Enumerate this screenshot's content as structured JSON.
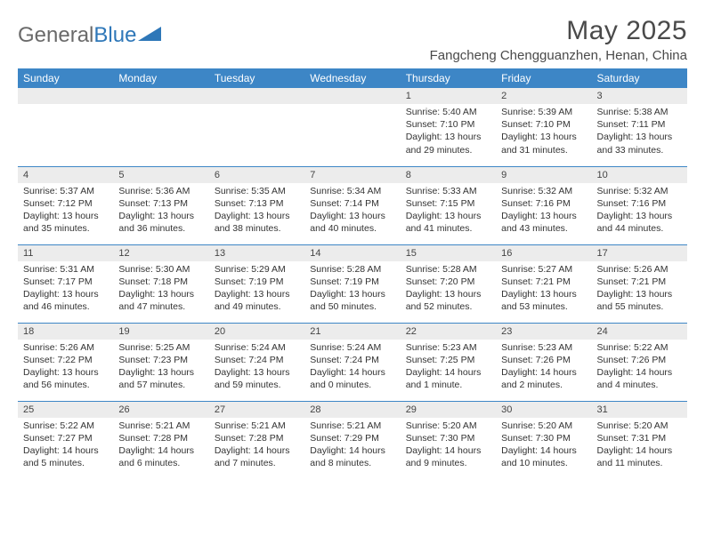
{
  "brand": {
    "part1": "General",
    "part2": "Blue"
  },
  "title": {
    "month": "May 2025",
    "location": "Fangcheng Chengguanzhen, Henan, China"
  },
  "colors": {
    "header_bg": "#3d86c6",
    "header_text": "#ffffff",
    "daynum_bg": "#ececec",
    "border": "#3d86c6",
    "logo_gray": "#6a6a6a",
    "logo_blue": "#2e77b8"
  },
  "weekdays": [
    "Sunday",
    "Monday",
    "Tuesday",
    "Wednesday",
    "Thursday",
    "Friday",
    "Saturday"
  ],
  "weeks": [
    [
      null,
      null,
      null,
      null,
      {
        "n": "1",
        "sr": "5:40 AM",
        "ss": "7:10 PM",
        "dl": "13 hours and 29 minutes."
      },
      {
        "n": "2",
        "sr": "5:39 AM",
        "ss": "7:10 PM",
        "dl": "13 hours and 31 minutes."
      },
      {
        "n": "3",
        "sr": "5:38 AM",
        "ss": "7:11 PM",
        "dl": "13 hours and 33 minutes."
      }
    ],
    [
      {
        "n": "4",
        "sr": "5:37 AM",
        "ss": "7:12 PM",
        "dl": "13 hours and 35 minutes."
      },
      {
        "n": "5",
        "sr": "5:36 AM",
        "ss": "7:13 PM",
        "dl": "13 hours and 36 minutes."
      },
      {
        "n": "6",
        "sr": "5:35 AM",
        "ss": "7:13 PM",
        "dl": "13 hours and 38 minutes."
      },
      {
        "n": "7",
        "sr": "5:34 AM",
        "ss": "7:14 PM",
        "dl": "13 hours and 40 minutes."
      },
      {
        "n": "8",
        "sr": "5:33 AM",
        "ss": "7:15 PM",
        "dl": "13 hours and 41 minutes."
      },
      {
        "n": "9",
        "sr": "5:32 AM",
        "ss": "7:16 PM",
        "dl": "13 hours and 43 minutes."
      },
      {
        "n": "10",
        "sr": "5:32 AM",
        "ss": "7:16 PM",
        "dl": "13 hours and 44 minutes."
      }
    ],
    [
      {
        "n": "11",
        "sr": "5:31 AM",
        "ss": "7:17 PM",
        "dl": "13 hours and 46 minutes."
      },
      {
        "n": "12",
        "sr": "5:30 AM",
        "ss": "7:18 PM",
        "dl": "13 hours and 47 minutes."
      },
      {
        "n": "13",
        "sr": "5:29 AM",
        "ss": "7:19 PM",
        "dl": "13 hours and 49 minutes."
      },
      {
        "n": "14",
        "sr": "5:28 AM",
        "ss": "7:19 PM",
        "dl": "13 hours and 50 minutes."
      },
      {
        "n": "15",
        "sr": "5:28 AM",
        "ss": "7:20 PM",
        "dl": "13 hours and 52 minutes."
      },
      {
        "n": "16",
        "sr": "5:27 AM",
        "ss": "7:21 PM",
        "dl": "13 hours and 53 minutes."
      },
      {
        "n": "17",
        "sr": "5:26 AM",
        "ss": "7:21 PM",
        "dl": "13 hours and 55 minutes."
      }
    ],
    [
      {
        "n": "18",
        "sr": "5:26 AM",
        "ss": "7:22 PM",
        "dl": "13 hours and 56 minutes."
      },
      {
        "n": "19",
        "sr": "5:25 AM",
        "ss": "7:23 PM",
        "dl": "13 hours and 57 minutes."
      },
      {
        "n": "20",
        "sr": "5:24 AM",
        "ss": "7:24 PM",
        "dl": "13 hours and 59 minutes."
      },
      {
        "n": "21",
        "sr": "5:24 AM",
        "ss": "7:24 PM",
        "dl": "14 hours and 0 minutes."
      },
      {
        "n": "22",
        "sr": "5:23 AM",
        "ss": "7:25 PM",
        "dl": "14 hours and 1 minute."
      },
      {
        "n": "23",
        "sr": "5:23 AM",
        "ss": "7:26 PM",
        "dl": "14 hours and 2 minutes."
      },
      {
        "n": "24",
        "sr": "5:22 AM",
        "ss": "7:26 PM",
        "dl": "14 hours and 4 minutes."
      }
    ],
    [
      {
        "n": "25",
        "sr": "5:22 AM",
        "ss": "7:27 PM",
        "dl": "14 hours and 5 minutes."
      },
      {
        "n": "26",
        "sr": "5:21 AM",
        "ss": "7:28 PM",
        "dl": "14 hours and 6 minutes."
      },
      {
        "n": "27",
        "sr": "5:21 AM",
        "ss": "7:28 PM",
        "dl": "14 hours and 7 minutes."
      },
      {
        "n": "28",
        "sr": "5:21 AM",
        "ss": "7:29 PM",
        "dl": "14 hours and 8 minutes."
      },
      {
        "n": "29",
        "sr": "5:20 AM",
        "ss": "7:30 PM",
        "dl": "14 hours and 9 minutes."
      },
      {
        "n": "30",
        "sr": "5:20 AM",
        "ss": "7:30 PM",
        "dl": "14 hours and 10 minutes."
      },
      {
        "n": "31",
        "sr": "5:20 AM",
        "ss": "7:31 PM",
        "dl": "14 hours and 11 minutes."
      }
    ]
  ],
  "labels": {
    "sunrise": "Sunrise:",
    "sunset": "Sunset:",
    "daylight": "Daylight:"
  }
}
